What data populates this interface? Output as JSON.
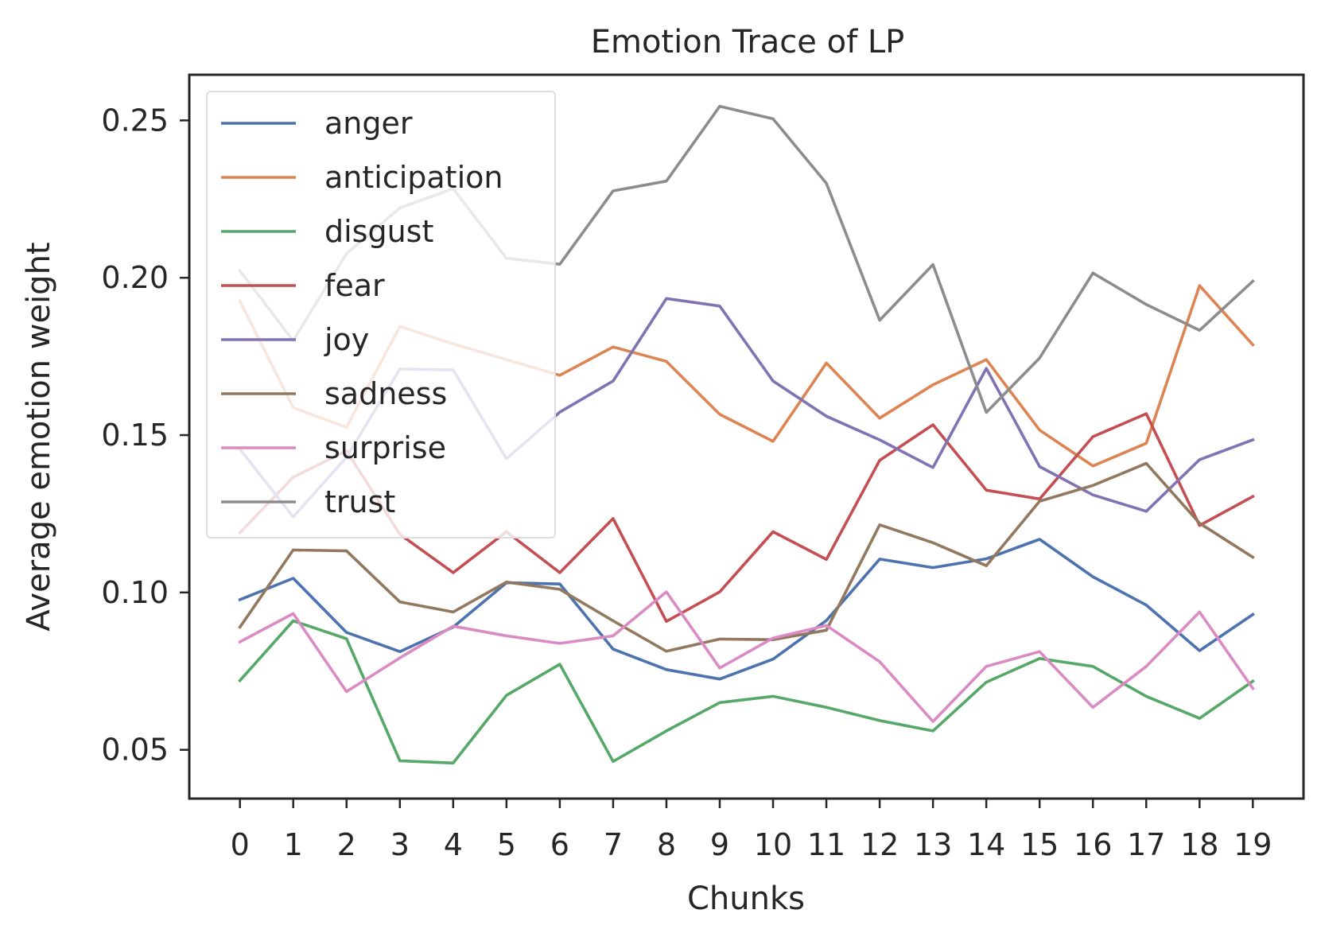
{
  "chart_data": {
    "type": "line",
    "title": "Emotion Trace of LP",
    "xlabel": "Chunks",
    "ylabel": "Average emotion weight",
    "x": [
      0,
      1,
      2,
      3,
      4,
      5,
      6,
      7,
      8,
      9,
      10,
      11,
      12,
      13,
      14,
      15,
      16,
      17,
      18,
      19
    ],
    "xticks": [
      "0",
      "1",
      "2",
      "3",
      "4",
      "5",
      "6",
      "7",
      "8",
      "9",
      "10",
      "11",
      "12",
      "13",
      "14",
      "15",
      "16",
      "17",
      "18",
      "19"
    ],
    "yticks": [
      "0.05",
      "0.10",
      "0.15",
      "0.20",
      "0.25"
    ],
    "ytick_values": [
      0.05,
      0.1,
      0.15,
      0.2,
      0.25
    ],
    "xlim": [
      -0.95,
      19.95
    ],
    "ylim": [
      0.0345,
      0.2645
    ],
    "grid": false,
    "legend_position": "upper-left",
    "series": [
      {
        "name": "anger",
        "color": "#4c72b0",
        "values": [
          0.0977,
          0.1045,
          0.0873,
          0.0812,
          0.089,
          0.1031,
          0.1027,
          0.082,
          0.0755,
          0.0725,
          0.0788,
          0.0911,
          0.1106,
          0.1079,
          0.1107,
          0.1169,
          0.105,
          0.096,
          0.0815,
          0.093
        ]
      },
      {
        "name": "anticipation",
        "color": "#dd8452",
        "values": [
          0.1926,
          0.1587,
          0.1525,
          0.1845,
          0.179,
          0.174,
          0.169,
          0.178,
          0.1734,
          0.1566,
          0.148,
          0.1729,
          0.1554,
          0.166,
          0.174,
          0.1516,
          0.1402,
          0.1474,
          0.1975,
          0.1787
        ]
      },
      {
        "name": "disgust",
        "color": "#55a868",
        "values": [
          0.072,
          0.091,
          0.0853,
          0.0465,
          0.0458,
          0.0673,
          0.0772,
          0.0463,
          0.056,
          0.065,
          0.067,
          0.0635,
          0.0593,
          0.056,
          0.0715,
          0.079,
          0.0765,
          0.067,
          0.06,
          0.0718
        ]
      },
      {
        "name": "fear",
        "color": "#c44e52",
        "values": [
          0.119,
          0.1366,
          0.145,
          0.1185,
          0.1063,
          0.1193,
          0.1063,
          0.1235,
          0.0908,
          0.1002,
          0.1193,
          0.1105,
          0.142,
          0.1533,
          0.1325,
          0.1297,
          0.1495,
          0.1568,
          0.1213,
          0.1305
        ]
      },
      {
        "name": "joy",
        "color": "#8172b3",
        "values": [
          0.1455,
          0.124,
          0.143,
          0.171,
          0.1707,
          0.1425,
          0.1573,
          0.1672,
          0.1934,
          0.191,
          0.1672,
          0.156,
          0.1485,
          0.1397,
          0.1712,
          0.14,
          0.131,
          0.1258,
          0.1422,
          0.1485
        ]
      },
      {
        "name": "sadness",
        "color": "#937860",
        "values": [
          0.089,
          0.1135,
          0.1132,
          0.097,
          0.0938,
          0.1033,
          0.101,
          0.091,
          0.0813,
          0.0852,
          0.085,
          0.088,
          0.1215,
          0.1158,
          0.1085,
          0.129,
          0.134,
          0.141,
          0.122,
          0.1112
        ]
      },
      {
        "name": "surprise",
        "color": "#da8bc3",
        "values": [
          0.0843,
          0.0933,
          0.0685,
          0.0792,
          0.0893,
          0.0862,
          0.0838,
          0.0862,
          0.1002,
          0.076,
          0.0855,
          0.0895,
          0.078,
          0.059,
          0.0765,
          0.0812,
          0.0635,
          0.0765,
          0.0938,
          0.0695
        ]
      },
      {
        "name": "trust",
        "color": "#8c8c8c",
        "values": [
          0.2022,
          0.18,
          0.2077,
          0.2222,
          0.2283,
          0.2062,
          0.2043,
          0.2276,
          0.2307,
          0.2545,
          0.2505,
          0.23,
          0.1865,
          0.2042,
          0.1572,
          0.1745,
          0.2015,
          0.1915,
          0.1833,
          0.1989
        ]
      }
    ]
  }
}
